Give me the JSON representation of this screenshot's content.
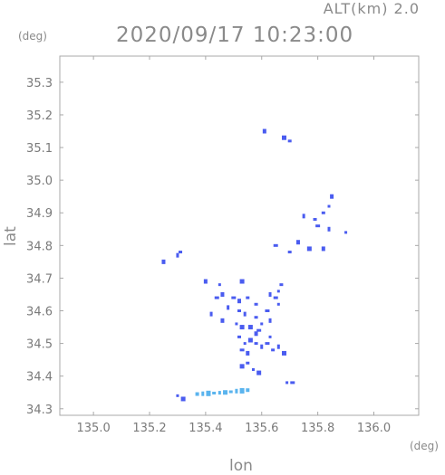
{
  "header": {
    "alt_label": "ALT(km)  2.0",
    "time_title": "2020/09/17 10:23:00"
  },
  "chart_data": {
    "type": "scatter",
    "title": "2020/09/17 10:23:00",
    "xlabel": "lon",
    "ylabel": "lat",
    "x_unit": "(deg)",
    "y_unit": "(deg)",
    "xlim": [
      134.88,
      136.16
    ],
    "ylim": [
      34.28,
      35.38
    ],
    "x_ticks": [
      "135.0",
      "135.2",
      "135.4",
      "135.6",
      "135.8",
      "136.0"
    ],
    "x_tick_values": [
      135.0,
      135.2,
      135.4,
      135.6,
      135.8,
      136.0
    ],
    "y_ticks": [
      "34.3",
      "34.4",
      "34.5",
      "34.6",
      "34.7",
      "34.8",
      "34.9",
      "35.0",
      "35.1",
      "35.2",
      "35.3"
    ],
    "y_tick_values": [
      34.3,
      34.4,
      34.5,
      34.6,
      34.7,
      34.8,
      34.9,
      35.0,
      35.1,
      35.2,
      35.3
    ],
    "grid": false,
    "colors": {
      "echo_main": "#4a5cf0",
      "echo_weak": "#5ab4ee",
      "echo_weak2": "#3ca0e0"
    },
    "series": [
      {
        "color": "#4a5cf0",
        "points": [
          [
            135.61,
            35.15
          ],
          [
            135.68,
            35.13
          ],
          [
            135.7,
            35.12
          ],
          [
            135.85,
            34.95
          ],
          [
            135.84,
            34.92
          ],
          [
            135.82,
            34.9
          ],
          [
            135.79,
            34.88
          ],
          [
            135.8,
            34.86
          ],
          [
            135.84,
            34.85
          ],
          [
            135.9,
            34.84
          ],
          [
            135.75,
            34.89
          ],
          [
            135.73,
            34.81
          ],
          [
            135.77,
            34.79
          ],
          [
            135.82,
            34.79
          ],
          [
            135.7,
            34.78
          ],
          [
            135.65,
            34.8
          ],
          [
            135.3,
            34.77
          ],
          [
            135.25,
            34.75
          ],
          [
            135.31,
            34.78
          ],
          [
            135.4,
            34.69
          ],
          [
            135.45,
            34.68
          ],
          [
            135.53,
            34.69
          ],
          [
            135.67,
            34.68
          ],
          [
            135.66,
            34.66
          ],
          [
            135.44,
            34.64
          ],
          [
            135.46,
            34.65
          ],
          [
            135.5,
            34.64
          ],
          [
            135.52,
            34.63
          ],
          [
            135.55,
            34.64
          ],
          [
            135.58,
            34.62
          ],
          [
            135.63,
            34.65
          ],
          [
            135.65,
            34.64
          ],
          [
            135.66,
            34.62
          ],
          [
            135.42,
            34.59
          ],
          [
            135.48,
            34.61
          ],
          [
            135.52,
            34.6
          ],
          [
            135.54,
            34.59
          ],
          [
            135.58,
            34.58
          ],
          [
            135.62,
            34.6
          ],
          [
            135.63,
            34.57
          ],
          [
            135.6,
            34.56
          ],
          [
            135.46,
            34.57
          ],
          [
            135.51,
            34.56
          ],
          [
            135.53,
            34.55
          ],
          [
            135.56,
            34.55
          ],
          [
            135.58,
            34.53
          ],
          [
            135.52,
            34.52
          ],
          [
            135.54,
            34.5
          ],
          [
            135.56,
            34.51
          ],
          [
            135.58,
            34.5
          ],
          [
            135.6,
            34.49
          ],
          [
            135.62,
            34.5
          ],
          [
            135.64,
            34.48
          ],
          [
            135.66,
            34.49
          ],
          [
            135.68,
            34.47
          ],
          [
            135.55,
            34.47
          ],
          [
            135.53,
            34.48
          ],
          [
            135.59,
            34.54
          ],
          [
            135.63,
            34.52
          ],
          [
            135.55,
            34.44
          ],
          [
            135.57,
            34.42
          ],
          [
            135.59,
            34.41
          ],
          [
            135.53,
            34.43
          ],
          [
            135.69,
            34.38
          ],
          [
            135.71,
            34.38
          ],
          [
            135.3,
            34.34
          ],
          [
            135.32,
            34.33
          ]
        ]
      },
      {
        "color": "#5ab4ee",
        "points": [
          [
            135.37,
            34.345
          ],
          [
            135.39,
            34.346
          ],
          [
            135.41,
            34.347
          ],
          [
            135.43,
            34.348
          ],
          [
            135.45,
            34.349
          ],
          [
            135.47,
            34.35
          ],
          [
            135.49,
            34.352
          ],
          [
            135.51,
            34.354
          ],
          [
            135.53,
            34.355
          ],
          [
            135.55,
            34.357
          ]
        ]
      }
    ]
  }
}
